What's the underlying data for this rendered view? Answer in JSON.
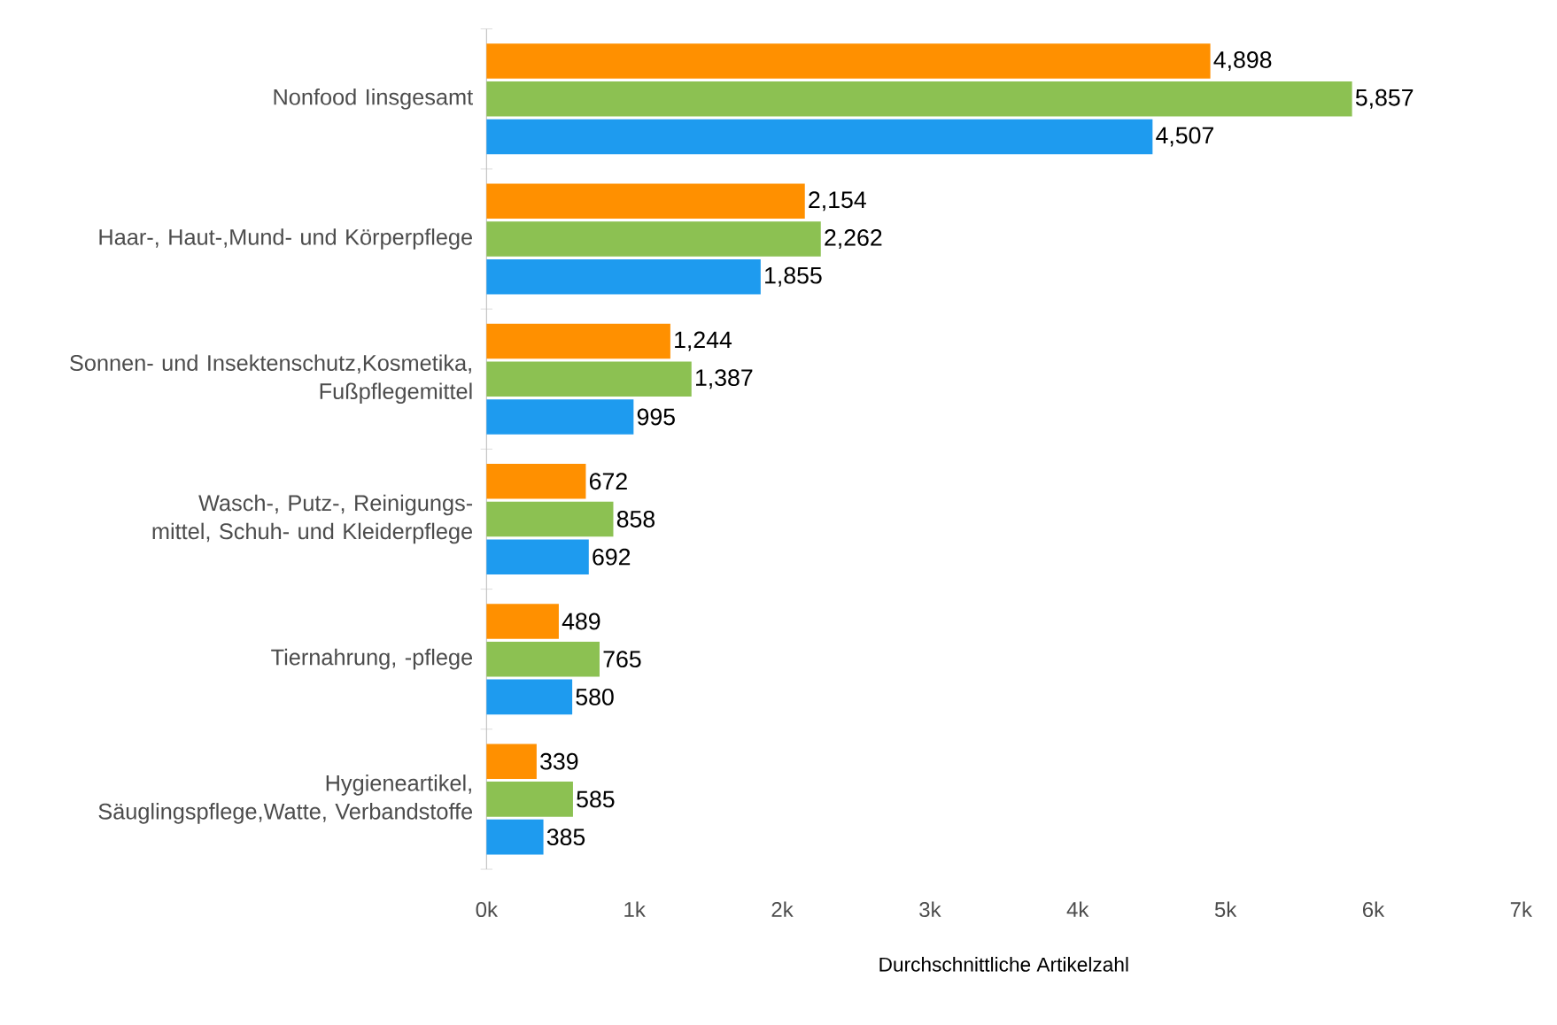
{
  "chart_data": {
    "type": "bar",
    "orientation": "horizontal",
    "xlabel": "Durchschnittliche Artikelzahl",
    "categories": [
      "Nonfood Iinsgesamt",
      "Haar-, Haut-,Mund- und Körperpflege",
      "Sonnen- und Insektenschutz,Kosmetika, Fußpflegemittel",
      "Wasch-, Putz-, Reinigungs-mittel, Schuh- und Kleiderpflege",
      "Tiernahrung, -pflege",
      "Hygieneartikel, Säuglingspflege,Watte, Verbandstoffe"
    ],
    "series": [
      {
        "color": "#ff9000",
        "values": [
          4898,
          2154,
          1244,
          672,
          489,
          339
        ],
        "value_labels": [
          "4,898",
          "2,154",
          "1,244",
          "672",
          "489",
          "339"
        ]
      },
      {
        "color": "#8cc152",
        "values": [
          5857,
          2262,
          1387,
          858,
          765,
          585
        ],
        "value_labels": [
          "5,857",
          "2,262",
          "1,387",
          "858",
          "765",
          "585"
        ]
      },
      {
        "color": "#1e9bef",
        "values": [
          4507,
          1855,
          995,
          692,
          580,
          385
        ],
        "value_labels": [
          "4,507",
          "1,855",
          "995",
          "692",
          "580",
          "385"
        ]
      }
    ],
    "xlim": [
      0,
      7000
    ],
    "xticks": [
      {
        "value": 0,
        "label": "0k"
      },
      {
        "value": 1000,
        "label": "1k"
      },
      {
        "value": 2000,
        "label": "2k"
      },
      {
        "value": 3000,
        "label": "3k"
      },
      {
        "value": 4000,
        "label": "4k"
      },
      {
        "value": 5000,
        "label": "5k"
      },
      {
        "value": 6000,
        "label": "6k"
      },
      {
        "value": 7000,
        "label": "7k"
      }
    ],
    "grid": false
  }
}
